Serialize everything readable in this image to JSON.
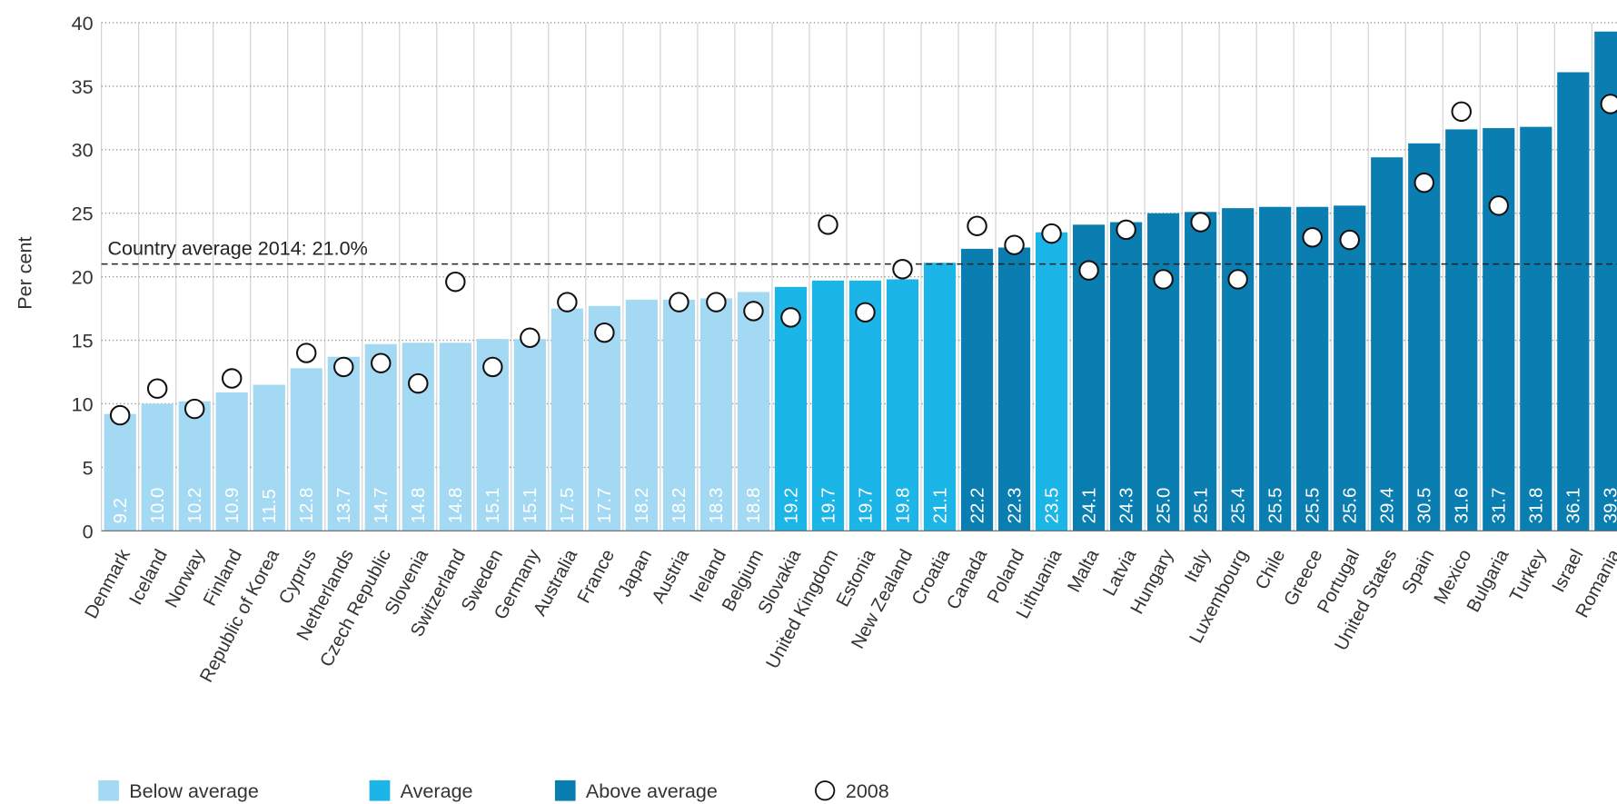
{
  "chart_data": {
    "type": "bar",
    "y_label": "Per cent",
    "categories": [
      "Denmark",
      "Iceland",
      "Norway",
      "Finland",
      "Republic of Korea",
      "Cyprus",
      "Netherlands",
      "Czech Republic",
      "Slovenia",
      "Switzerland",
      "Sweden",
      "Germany",
      "Australia",
      "France",
      "Japan",
      "Austria",
      "Ireland",
      "Belgium",
      "Slovakia",
      "United Kingdom",
      "Estonia",
      "New Zealand",
      "Croatia",
      "Canada",
      "Poland",
      "Lithuania",
      "Malta",
      "Latvia",
      "Hungary",
      "Italy",
      "Luxembourg",
      "Chile",
      "Greece",
      "Portugal",
      "United States",
      "Spain",
      "Mexico",
      "Bulgaria",
      "Turkey",
      "Israel",
      "Romania"
    ],
    "series": [
      {
        "name": "Below average",
        "color": "#a3d9f3",
        "values": [
          9.2,
          10.0,
          10.2,
          10.9,
          11.5,
          12.8,
          13.7,
          14.7,
          14.8,
          14.8,
          15.1,
          15.1,
          17.5,
          17.7,
          18.2,
          18.2,
          18.3,
          18.8,
          null,
          null,
          null,
          null,
          null,
          null,
          null,
          null,
          null,
          null,
          null,
          null,
          null,
          null,
          null,
          null,
          null,
          null,
          null,
          null,
          null,
          null,
          null
        ],
        "value_labels": [
          "9.2",
          "10.0",
          "10.2",
          "10.9",
          "11.5",
          "12.8",
          "13.7",
          "14.7",
          "14.8",
          "14.8",
          "15.1",
          "15.1",
          "17.5",
          "17.7",
          "18.2",
          "18.2",
          "18.3",
          "18.8",
          null,
          null,
          null,
          null,
          null,
          null,
          null,
          null,
          null,
          null,
          null,
          null,
          null,
          null,
          null,
          null,
          null,
          null,
          null,
          null,
          null,
          null,
          null
        ]
      },
      {
        "name": "Average",
        "color": "#1cb5e8",
        "values": [
          null,
          null,
          null,
          null,
          null,
          null,
          null,
          null,
          null,
          null,
          null,
          null,
          null,
          null,
          null,
          null,
          null,
          null,
          19.2,
          19.7,
          19.7,
          19.8,
          21.1,
          null,
          null,
          23.5,
          null,
          null,
          null,
          null,
          null,
          null,
          null,
          null,
          null,
          null,
          null,
          null,
          null,
          null,
          null
        ],
        "value_labels": [
          null,
          null,
          null,
          null,
          null,
          null,
          null,
          null,
          null,
          null,
          null,
          null,
          null,
          null,
          null,
          null,
          null,
          null,
          "19.2",
          "19.7",
          "19.7",
          "19.8",
          "21.1",
          null,
          null,
          "23.5",
          null,
          null,
          null,
          null,
          null,
          null,
          null,
          null,
          null,
          null,
          null,
          null,
          null,
          null,
          null
        ]
      },
      {
        "name": "Above average",
        "color": "#0b7eb1",
        "values": [
          null,
          null,
          null,
          null,
          null,
          null,
          null,
          null,
          null,
          null,
          null,
          null,
          null,
          null,
          null,
          null,
          null,
          null,
          null,
          null,
          null,
          null,
          null,
          22.2,
          22.3,
          null,
          24.1,
          24.3,
          25.0,
          25.1,
          25.4,
          25.5,
          25.5,
          25.6,
          29.4,
          30.5,
          31.6,
          31.7,
          31.8,
          36.1,
          39.3
        ],
        "value_labels": [
          null,
          null,
          null,
          null,
          null,
          null,
          null,
          null,
          null,
          null,
          null,
          null,
          null,
          null,
          null,
          null,
          null,
          null,
          null,
          null,
          null,
          null,
          null,
          "22.2",
          "22.3",
          null,
          "24.1",
          "24.3",
          "25.0",
          "25.1",
          "25.4",
          "25.5",
          "25.5",
          "25.6",
          "29.4",
          "30.5",
          "31.6",
          "31.7",
          "31.8",
          "36.1",
          "39.3"
        ]
      },
      {
        "name": "2008",
        "type": "scatter",
        "color": "#ffffff",
        "values": [
          9.1,
          11.2,
          9.6,
          12.0,
          null,
          14.0,
          12.9,
          13.2,
          11.6,
          19.6,
          12.9,
          15.2,
          18.0,
          15.6,
          null,
          18.0,
          18.0,
          17.3,
          16.8,
          24.1,
          17.2,
          20.6,
          null,
          24.0,
          22.5,
          23.4,
          20.5,
          23.7,
          19.8,
          24.3,
          19.8,
          null,
          23.1,
          22.9,
          null,
          27.4,
          33.0,
          25.6,
          null,
          null,
          33.6
        ]
      }
    ],
    "average": {
      "value": 21.0,
      "label": "Country average 2014: 21.0%"
    },
    "ylim": [
      0,
      40
    ],
    "yticks": [
      0,
      5,
      10,
      15,
      20,
      25,
      30,
      35,
      40
    ],
    "grid": true,
    "legend": "bottom"
  }
}
